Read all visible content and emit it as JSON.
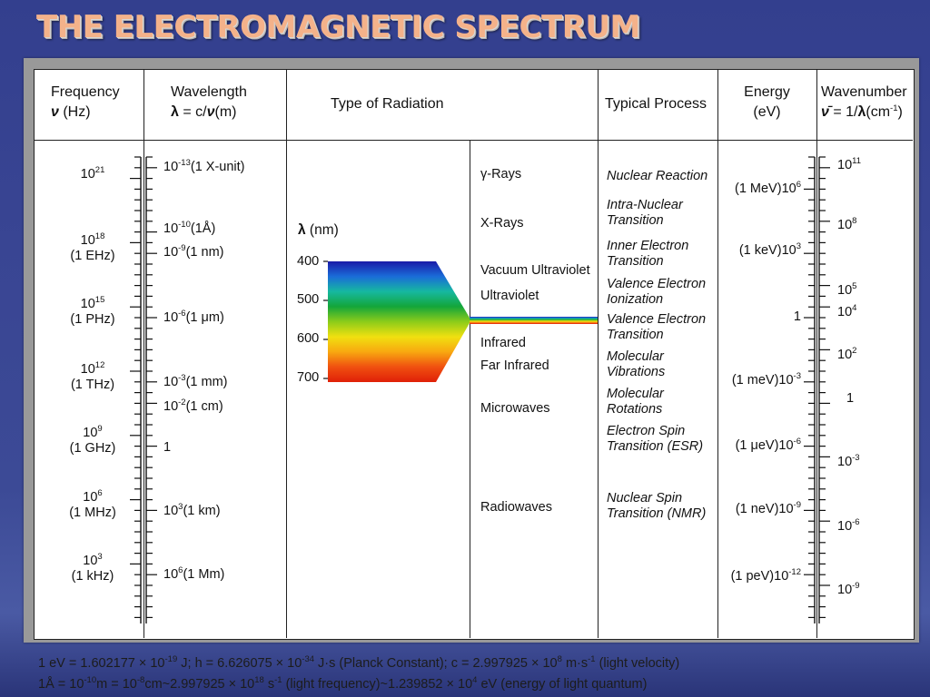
{
  "title": "THE ELECTROMAGNETIC SPECTRUM",
  "headers": {
    "frequency": {
      "line1": "Frequency",
      "symbol": "ν",
      "unit": " (Hz)"
    },
    "wavelength": {
      "line1": "Wavelength",
      "symbol": "λ",
      "formula": " = c/",
      "symbol2": "ν",
      "unit": "(m)"
    },
    "type": "Type of Radiation",
    "process": "Typical Process",
    "energy": {
      "line1": "Energy",
      "unit": "(eV)"
    },
    "wavenumber": {
      "line1": "Wavenumber",
      "symbol": "ν̄",
      "formula": " = 1/",
      "symbol2": "λ",
      "unit_pre": "(cm",
      "unit_exp": "-1",
      "unit_post": ")"
    }
  },
  "frequency": [
    {
      "base": "10",
      "exp": "21",
      "unit": ""
    },
    {
      "base": "10",
      "exp": "18",
      "unit": "(1 EHz)"
    },
    {
      "base": "10",
      "exp": "15",
      "unit": "(1 PHz)"
    },
    {
      "base": "10",
      "exp": "12",
      "unit": "(1 THz)"
    },
    {
      "base": "10",
      "exp": "9",
      "unit": "(1 GHz)"
    },
    {
      "base": "10",
      "exp": "6",
      "unit": "(1 MHz)"
    },
    {
      "base": "10",
      "exp": "3",
      "unit": "(1 kHz)"
    }
  ],
  "wavelength": [
    {
      "base": "10",
      "exp": "-13",
      "suffix": "(1 X-unit)"
    },
    {
      "base": "10",
      "exp": "-10",
      "suffix": "(1Å)"
    },
    {
      "base": "10",
      "exp": "-9",
      "suffix": "(1 nm)"
    },
    {
      "base": "10",
      "exp": "-6",
      "suffix": "(1 μm)"
    },
    {
      "base": "10",
      "exp": "-3",
      "suffix": "(1 mm)"
    },
    {
      "base": "10",
      "exp": "-2",
      "suffix": "(1 cm)"
    },
    {
      "base": "1",
      "exp": "",
      "suffix": ""
    },
    {
      "base": "10",
      "exp": "3",
      "suffix": "(1 km)"
    },
    {
      "base": "10",
      "exp": "6",
      "suffix": "(1 Mm)"
    }
  ],
  "visible": {
    "axis_symbol": "λ",
    "axis_unit": " (nm)",
    "ticks": [
      "400",
      "500",
      "600",
      "700"
    ],
    "colors": [
      "#1a1aa8",
      "#1a6cd8",
      "#16b8a0",
      "#14a63a",
      "#8ccc1a",
      "#f0e010",
      "#f8a810",
      "#f05010",
      "#e02008"
    ]
  },
  "radiation": [
    {
      "pre": "γ",
      "label": "-Rays"
    },
    {
      "pre": "",
      "label": "X-Rays"
    },
    {
      "pre": "",
      "label": "Vacuum Ultraviolet"
    },
    {
      "pre": "",
      "label": "Ultraviolet"
    },
    {
      "pre": "",
      "label": "Infrared"
    },
    {
      "pre": "",
      "label": "Far Infrared"
    },
    {
      "pre": "",
      "label": "Microwaves"
    },
    {
      "pre": "",
      "label": "Radiowaves"
    }
  ],
  "processes": [
    {
      "line1": "Nuclear Reaction",
      "line2": ""
    },
    {
      "line1": "Intra-Nuclear",
      "line2": "Transition"
    },
    {
      "line1": "Inner Electron",
      "line2": "Transition"
    },
    {
      "line1": "Valence Electron",
      "line2": "Ionization"
    },
    {
      "line1": "Valence Electron",
      "line2": "Transition"
    },
    {
      "line1": "Molecular",
      "line2": "Vibrations"
    },
    {
      "line1": "Molecular",
      "line2": "Rotations"
    },
    {
      "line1": "Electron Spin",
      "line2": "Transition (ESR)"
    },
    {
      "line1": "Nuclear Spin",
      "line2": "Transition (NMR)"
    }
  ],
  "energy": [
    {
      "prefix": "(1 MeV)",
      "base": "10",
      "exp": "6"
    },
    {
      "prefix": "(1 keV)",
      "base": "10",
      "exp": "3"
    },
    {
      "prefix": "",
      "base": "1",
      "exp": ""
    },
    {
      "prefix": "(1 meV)",
      "base": "10",
      "exp": "-3"
    },
    {
      "prefix": "(1 μeV)",
      "base": "10",
      "exp": "-6"
    },
    {
      "prefix": "(1 neV)",
      "base": "10",
      "exp": "-9"
    },
    {
      "prefix": "(1 peV)",
      "base": "10",
      "exp": "-12"
    }
  ],
  "wavenumber": [
    {
      "base": "10",
      "exp": "11"
    },
    {
      "base": "10",
      "exp": "8"
    },
    {
      "base": "10",
      "exp": "5"
    },
    {
      "base": "10",
      "exp": "4"
    },
    {
      "base": "10",
      "exp": "2"
    },
    {
      "base": "1",
      "exp": ""
    },
    {
      "base": "10",
      "exp": "-3"
    },
    {
      "base": "10",
      "exp": "-6"
    },
    {
      "base": "10",
      "exp": "-9"
    }
  ],
  "footnotes": {
    "line1": {
      "a": "1 eV = 1.602177 × 10",
      "a_exp": "-19",
      "b": " J;  h = 6.626075 × 10",
      "b_exp": "-34",
      "c": " J·s (Planck Constant);  c = 2.997925 × 10",
      "c_exp": "8",
      "d": " m·s",
      "d_exp": "-1",
      "e": " (light velocity)"
    },
    "line2": {
      "a": "1Å = 10",
      "a_exp": "-10",
      "b": "m = 10",
      "b_exp": "-8",
      "c": "cm~2.997925 × 10",
      "c_exp": "18",
      "d": " s",
      "d_exp": "-1",
      "e": " (light frequency)~1.239852 × 10",
      "e_exp": "4",
      "f": " eV (energy of light quantum)"
    }
  }
}
